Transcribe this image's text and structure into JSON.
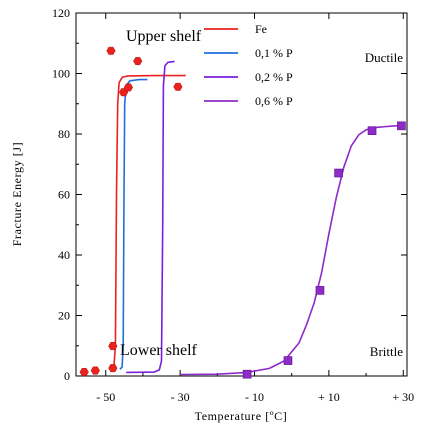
{
  "chart_data": {
    "type": "line",
    "xlabel": "Temperature [ºC]",
    "ylabel": "Fracture Energy [J]",
    "xlim": [
      -58,
      31
    ],
    "ylim": [
      0,
      120
    ],
    "x_ticks": [
      -50,
      -30,
      -10,
      10,
      30
    ],
    "x_tick_labels": [
      "- 50",
      "- 30",
      "- 10",
      "+ 10",
      "+ 30"
    ],
    "y_ticks": [
      0,
      20,
      40,
      60,
      80,
      100,
      120
    ],
    "y_tick_labels": [
      "0",
      "20",
      "40",
      "60",
      "80",
      "100",
      "120"
    ],
    "grid": false,
    "legend_position": "top-right",
    "annotations": {
      "upper_shelf": "Upper shelf",
      "lower_shelf": "Lower shelf",
      "ductile": "Ductile",
      "brittle": "Brittle"
    },
    "series": [
      {
        "name": "Fe",
        "color": "#e8231e",
        "curve": [
          [
            -48.6,
            2
          ],
          [
            -47.8,
            3
          ],
          [
            -47.4,
            10
          ],
          [
            -47.1,
            60
          ],
          [
            -46.8,
            90
          ],
          [
            -46.4,
            97
          ],
          [
            -45.5,
            98.8
          ],
          [
            -44,
            99.2
          ],
          [
            -37,
            99.3
          ],
          [
            -28.5,
            99.3
          ]
        ],
        "markers": "hexagon",
        "points": [
          [
            -55.8,
            1.3
          ],
          [
            -52.8,
            1.8
          ],
          [
            -48.1,
            2.6
          ],
          [
            -48.1,
            9.9
          ],
          [
            -48.6,
            107.5
          ],
          [
            -45.2,
            93.8
          ],
          [
            -43.9,
            95.4
          ],
          [
            -41.4,
            104.1
          ],
          [
            -30.6,
            95.6
          ]
        ]
      },
      {
        "name": "0,1 % P",
        "color": "#1f6fe0",
        "curve": [
          [
            -46.2,
            2.2
          ],
          [
            -45.6,
            3
          ],
          [
            -45.3,
            10
          ],
          [
            -45.1,
            60
          ],
          [
            -44.9,
            90
          ],
          [
            -44.5,
            96
          ],
          [
            -43.5,
            97.6
          ],
          [
            -41,
            98
          ],
          [
            -38.8,
            98
          ]
        ],
        "markers": "none",
        "points": []
      },
      {
        "name": "0,2 % P",
        "color": "#7a1fe0",
        "curve": [
          [
            -44.5,
            1.2
          ],
          [
            -37,
            1.3
          ],
          [
            -35.6,
            2
          ],
          [
            -35,
            5
          ],
          [
            -34.7,
            50
          ],
          [
            -34.5,
            96
          ],
          [
            -34.1,
            102.5
          ],
          [
            -33.3,
            103.7
          ],
          [
            -31.5,
            104
          ]
        ],
        "markers": "none",
        "points": []
      },
      {
        "name": "0,6 % P",
        "color": "#8e2bc9",
        "curve": [
          [
            -30,
            0.5
          ],
          [
            -20,
            0.6
          ],
          [
            -12,
            1.2
          ],
          [
            -6,
            2.5
          ],
          [
            -2,
            5
          ],
          [
            2,
            11
          ],
          [
            4,
            17
          ],
          [
            6,
            24
          ],
          [
            8,
            34
          ],
          [
            10,
            47
          ],
          [
            12,
            59
          ],
          [
            14,
            69
          ],
          [
            16,
            76
          ],
          [
            18,
            79.7
          ],
          [
            20,
            81.4
          ],
          [
            23,
            82.2
          ],
          [
            27,
            82.6
          ],
          [
            30,
            82.8
          ]
        ],
        "markers": "square",
        "points": [
          [
            -12,
            0.6
          ],
          [
            -1,
            5.1
          ],
          [
            7.6,
            28.3
          ],
          [
            12.6,
            67.1
          ],
          [
            21.6,
            81.1
          ],
          [
            29.5,
            82.7
          ]
        ]
      }
    ]
  }
}
